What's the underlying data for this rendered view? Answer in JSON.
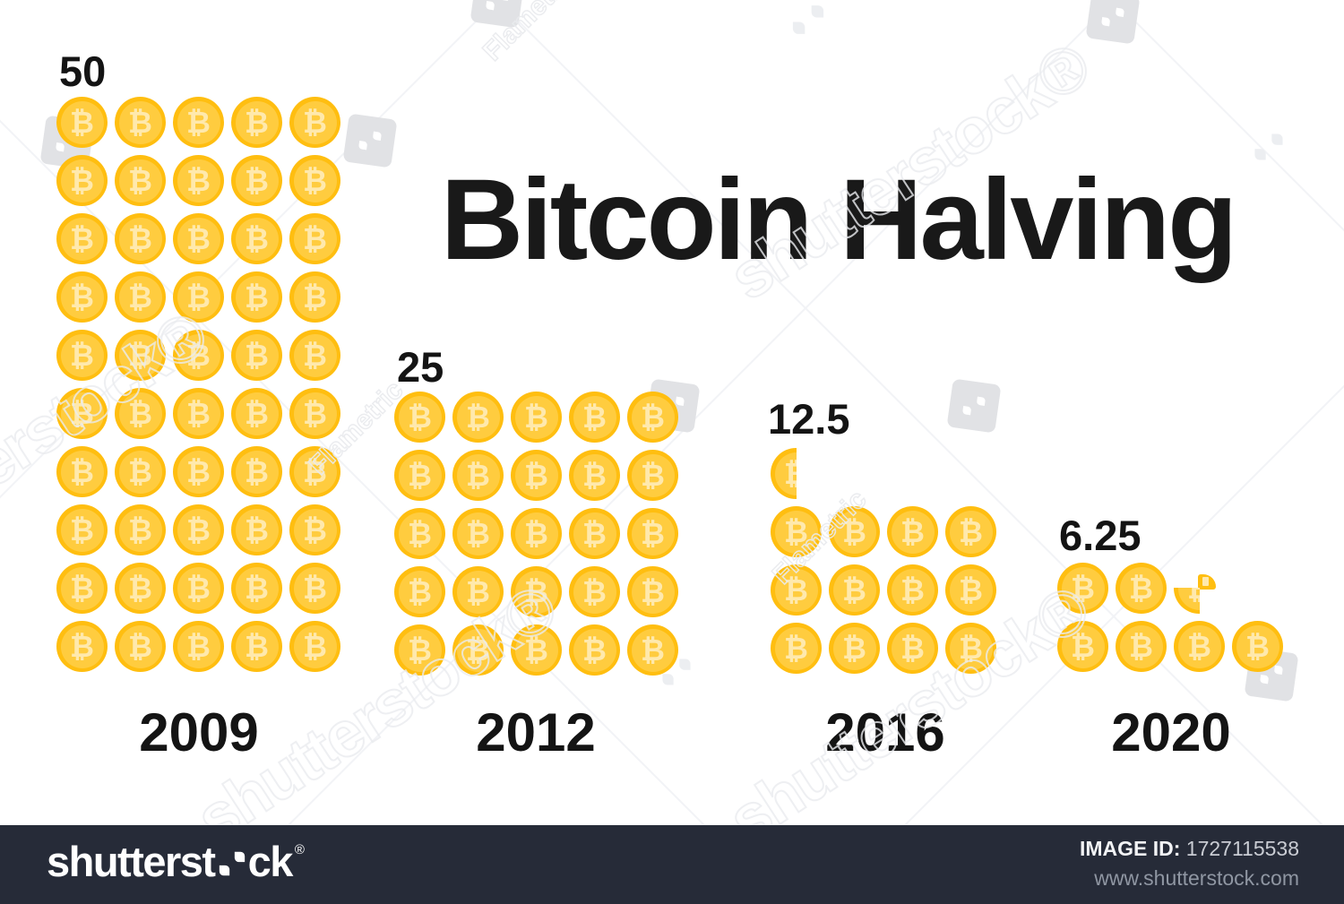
{
  "title": "Bitcoin Halving",
  "chart_data": {
    "type": "bar",
    "variant": "pictogram-of-bitcoin-coins",
    "title": "Bitcoin Halving",
    "categories": [
      "2009",
      "2012",
      "2016",
      "2020"
    ],
    "values": [
      50,
      25,
      12.5,
      6.25
    ],
    "value_labels": [
      "50",
      "25",
      "12.5",
      "6.25"
    ],
    "icon": "bitcoin-coin",
    "axes": false,
    "grid": false,
    "legend": false
  },
  "groups": [
    {
      "id": "2009",
      "value_label": "50",
      "year_label": "2009",
      "rows": [
        "ccccc",
        "ccccc",
        "ccccc",
        "ccccc",
        "ccccc",
        "ccccc",
        "ccccc",
        "ccccc",
        "ccccc",
        "ccccc"
      ]
    },
    {
      "id": "2012",
      "value_label": "25",
      "year_label": "2012",
      "rows": [
        "ccccc",
        "ccccc",
        "ccccc",
        "ccccc",
        "ccccc"
      ]
    },
    {
      "id": "2016",
      "value_label": "12.5",
      "year_label": "2016",
      "rows": [
        "h",
        "cccc",
        "cccc",
        "cccc"
      ]
    },
    {
      "id": "2020",
      "value_label": "6.25",
      "year_label": "2020",
      "rows": [
        "ccq",
        "cccc"
      ]
    }
  ],
  "watermark": {
    "diagonal_text": "shutterstock®",
    "artist": "Flametric",
    "logo_left": "shutterst",
    "logo_right": "ck",
    "reg": "®",
    "image_id_label": "IMAGE ID:",
    "image_id": "1727115538",
    "url": "www.shutterstock.com"
  },
  "colors": {
    "coin_outer": "#FFBE10",
    "coin_inner": "#FFCC3F",
    "coin_symbol": "#FFE9AD",
    "bottom_bar": "#262B38",
    "text": "#141414"
  }
}
